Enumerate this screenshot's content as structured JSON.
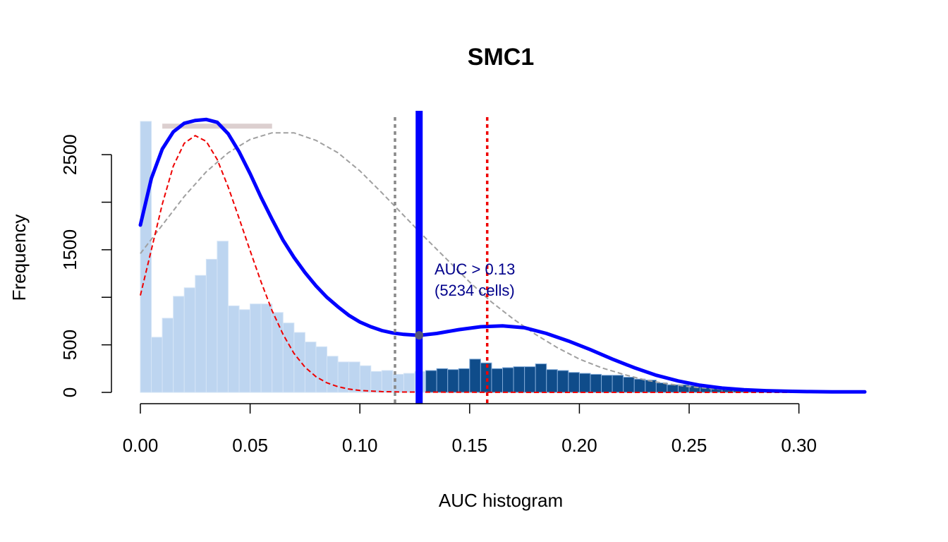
{
  "chart_data": {
    "type": "bar",
    "title": "SMC1",
    "xlabel": "AUC histogram",
    "ylabel": "Frequency",
    "xlim": [
      0,
      0.33
    ],
    "ylim": [
      0,
      2850
    ],
    "x_ticks": [
      0.0,
      0.05,
      0.1,
      0.15,
      0.2,
      0.25,
      0.3
    ],
    "x_tick_labels": [
      "0.00",
      "0.05",
      "0.10",
      "0.15",
      "0.20",
      "0.25",
      "0.30"
    ],
    "y_ticks": [
      0,
      500,
      1500,
      2500
    ],
    "y_tick_labels": [
      "0",
      "500",
      "1500",
      "2500"
    ],
    "bin_width": 0.005,
    "bins_start": [
      0.0,
      0.005,
      0.01,
      0.015,
      0.02,
      0.025,
      0.03,
      0.035,
      0.04,
      0.045,
      0.05,
      0.055,
      0.06,
      0.065,
      0.07,
      0.075,
      0.08,
      0.085,
      0.09,
      0.095,
      0.1,
      0.105,
      0.11,
      0.115,
      0.12,
      0.125,
      0.13,
      0.135,
      0.14,
      0.145,
      0.15,
      0.155,
      0.16,
      0.165,
      0.17,
      0.175,
      0.18,
      0.185,
      0.19,
      0.195,
      0.2,
      0.205,
      0.21,
      0.215,
      0.22,
      0.225,
      0.23,
      0.235,
      0.24,
      0.245,
      0.25,
      0.255,
      0.26,
      0.265,
      0.27,
      0.275,
      0.28,
      0.285,
      0.29,
      0.295,
      0.3,
      0.305,
      0.31,
      0.315,
      0.32,
      0.325
    ],
    "counts": [
      2850,
      580,
      780,
      1010,
      1100,
      1230,
      1400,
      1590,
      910,
      870,
      930,
      930,
      840,
      730,
      630,
      530,
      480,
      380,
      320,
      320,
      280,
      220,
      230,
      190,
      200,
      220,
      230,
      250,
      240,
      250,
      350,
      310,
      250,
      260,
      270,
      270,
      300,
      240,
      230,
      210,
      200,
      190,
      180,
      180,
      160,
      140,
      130,
      100,
      80,
      80,
      70,
      60,
      40,
      30,
      25,
      20,
      15,
      12,
      10,
      8,
      6,
      5,
      4,
      3,
      2,
      1
    ],
    "threshold": 0.127,
    "threshold_annotation": [
      "AUC > 0.13",
      "(5234 cells)"
    ],
    "vertical_lines": [
      {
        "x": 0.116,
        "style": "dotted",
        "color": "#888888"
      },
      {
        "x": 0.127,
        "style": "solid",
        "color": "#0000ff"
      },
      {
        "x": 0.158,
        "style": "dotted",
        "color": "#ee0000"
      }
    ],
    "horizontal_segment": {
      "x": [
        0.01,
        0.06
      ],
      "y": 2800,
      "color": "#dccfcf"
    },
    "curves": [
      {
        "style": "solid",
        "color": "#0000ff",
        "x": [
          0.0,
          0.005,
          0.01,
          0.015,
          0.02,
          0.025,
          0.03,
          0.035,
          0.04,
          0.045,
          0.05,
          0.055,
          0.06,
          0.065,
          0.07,
          0.075,
          0.08,
          0.085,
          0.09,
          0.095,
          0.1,
          0.105,
          0.11,
          0.115,
          0.12,
          0.127,
          0.135,
          0.145,
          0.155,
          0.165,
          0.175,
          0.185,
          0.195,
          0.205,
          0.215,
          0.225,
          0.235,
          0.245,
          0.255,
          0.265,
          0.275,
          0.285,
          0.295,
          0.305,
          0.315,
          0.325,
          0.33
        ],
        "y": [
          1760,
          2250,
          2560,
          2740,
          2830,
          2860,
          2870,
          2840,
          2720,
          2530,
          2300,
          2050,
          1820,
          1600,
          1420,
          1260,
          1120,
          1000,
          900,
          810,
          740,
          690,
          650,
          625,
          610,
          600,
          620,
          660,
          690,
          700,
          680,
          620,
          540,
          450,
          350,
          260,
          180,
          120,
          75,
          45,
          28,
          18,
          12,
          8,
          6,
          5,
          5
        ]
      },
      {
        "style": "dashed",
        "color": "#ee0000",
        "x": [
          0.0,
          0.005,
          0.01,
          0.015,
          0.02,
          0.025,
          0.03,
          0.035,
          0.04,
          0.045,
          0.05,
          0.055,
          0.06,
          0.065,
          0.07,
          0.075,
          0.08,
          0.085,
          0.09,
          0.095,
          0.1,
          0.11,
          0.12,
          0.14,
          0.16,
          0.2,
          0.25,
          0.33
        ],
        "y": [
          1020,
          1500,
          1980,
          2380,
          2620,
          2700,
          2640,
          2450,
          2160,
          1830,
          1490,
          1160,
          860,
          610,
          410,
          265,
          165,
          100,
          60,
          35,
          20,
          8,
          4,
          2,
          1,
          0,
          0,
          0
        ]
      },
      {
        "style": "dashed",
        "color": "#a0a0a0",
        "x": [
          0.0,
          0.01,
          0.02,
          0.03,
          0.04,
          0.05,
          0.06,
          0.07,
          0.08,
          0.09,
          0.1,
          0.11,
          0.12,
          0.13,
          0.14,
          0.15,
          0.16,
          0.17,
          0.18,
          0.19,
          0.2,
          0.21,
          0.22,
          0.23,
          0.24,
          0.25,
          0.26,
          0.27,
          0.28,
          0.29,
          0.3,
          0.31,
          0.32,
          0.33
        ],
        "y": [
          1460,
          1760,
          2060,
          2320,
          2520,
          2660,
          2730,
          2730,
          2650,
          2520,
          2330,
          2100,
          1860,
          1620,
          1390,
          1160,
          950,
          770,
          610,
          470,
          350,
          260,
          190,
          130,
          90,
          60,
          40,
          25,
          16,
          10,
          6,
          4,
          2,
          1
        ]
      }
    ],
    "colors": {
      "bar_below": "#bdd5f0",
      "bar_above": "#0f4c8a",
      "bar_above_edge": "#7fa8d6",
      "annotation": "#00008b"
    }
  }
}
